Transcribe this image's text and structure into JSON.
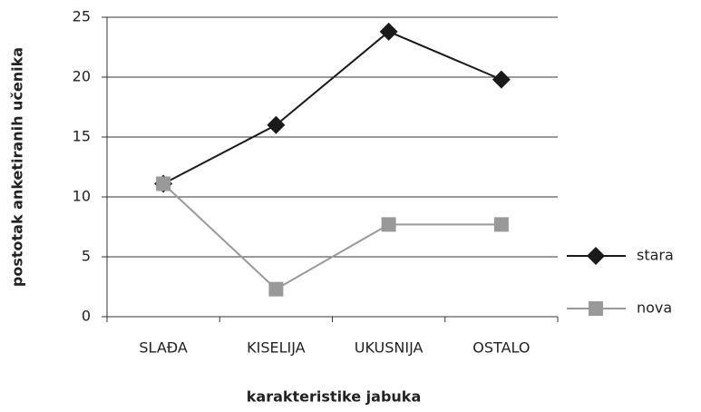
{
  "chart_data": {
    "type": "line",
    "x_label": "karakteristike jabuka",
    "y_label": "postotak anketiranih učenika",
    "categories": [
      "SLAĐA",
      "KISELIJA",
      "UKUSNIJA",
      "OSTALO"
    ],
    "series": [
      {
        "name": "stara",
        "color": "#1a1a1a",
        "marker": "diamond",
        "values": [
          11.1,
          16,
          23.8,
          19.8
        ]
      },
      {
        "name": "nova",
        "color": "#999999",
        "marker": "square",
        "values": [
          11.1,
          2.3,
          7.7,
          7.7
        ]
      }
    ],
    "ylim": [
      0,
      25
    ],
    "yticks": [
      0,
      5,
      10,
      15,
      20,
      25
    ],
    "grid": true,
    "legend": "right"
  }
}
